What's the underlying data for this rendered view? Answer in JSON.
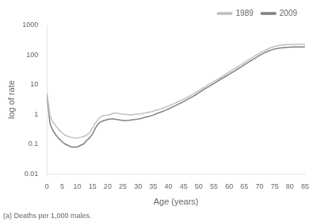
{
  "chart_data": {
    "type": "line",
    "xlabel": "Age (years)",
    "ylabel": "log of rate",
    "annotations": [
      "(a) Deaths per 1,000 males."
    ],
    "log": "y",
    "grid": false,
    "legend": "upper right",
    "xlim": [
      0,
      85
    ],
    "xticks": [
      0,
      5,
      10,
      15,
      20,
      25,
      30,
      35,
      40,
      45,
      50,
      55,
      60,
      65,
      70,
      75,
      80,
      85
    ],
    "ylim": [
      0.01,
      1000
    ],
    "yticks": [
      0.01,
      0.1,
      1,
      10,
      100,
      1000
    ],
    "x": [
      0,
      1,
      2,
      3,
      4,
      5,
      6,
      7,
      8,
      9,
      10,
      11,
      12,
      13,
      14,
      15,
      16,
      17,
      18,
      19,
      20,
      21,
      22,
      23,
      24,
      25,
      26,
      27,
      28,
      29,
      30,
      31,
      32,
      33,
      34,
      35,
      36,
      37,
      38,
      39,
      40,
      41,
      42,
      43,
      44,
      45,
      46,
      47,
      48,
      49,
      50,
      51,
      52,
      53,
      54,
      55,
      56,
      57,
      58,
      59,
      60,
      61,
      62,
      63,
      64,
      65,
      66,
      67,
      68,
      69,
      70,
      71,
      72,
      73,
      74,
      75,
      76,
      77,
      78,
      79,
      80,
      81,
      82,
      83,
      84,
      85
    ],
    "series": [
      {
        "name": "1989",
        "color": "#c0c0c0",
        "values": [
          5.5,
          0.9,
          0.55,
          0.4,
          0.3,
          0.24,
          0.2,
          0.18,
          0.17,
          0.16,
          0.16,
          0.17,
          0.18,
          0.2,
          0.24,
          0.35,
          0.52,
          0.72,
          0.88,
          0.93,
          0.95,
          1.0,
          1.1,
          1.1,
          1.05,
          1.02,
          1.0,
          0.98,
          0.98,
          1.0,
          1.02,
          1.05,
          1.1,
          1.15,
          1.2,
          1.28,
          1.38,
          1.48,
          1.6,
          1.75,
          1.9,
          2.1,
          2.35,
          2.6,
          2.9,
          3.25,
          3.7,
          4.2,
          4.8,
          5.5,
          6.3,
          7.3,
          8.5,
          9.8,
          11.2,
          13.0,
          15.0,
          17.5,
          20.0,
          23.0,
          27.0,
          31.0,
          36.0,
          42.0,
          48.0,
          56.0,
          65.0,
          75.0,
          87.0,
          100.0,
          115.0,
          130.0,
          148.0,
          165.0,
          182.0,
          195.0,
          205.0,
          215.0,
          220.0,
          225.0,
          228.0,
          230.0,
          231.0,
          232.0,
          232.0,
          233.0
        ]
      },
      {
        "name": "2009",
        "color": "#808080",
        "values": [
          4.5,
          0.5,
          0.28,
          0.2,
          0.15,
          0.12,
          0.1,
          0.09,
          0.08,
          0.08,
          0.08,
          0.09,
          0.1,
          0.13,
          0.16,
          0.22,
          0.35,
          0.5,
          0.58,
          0.63,
          0.67,
          0.7,
          0.7,
          0.67,
          0.65,
          0.62,
          0.62,
          0.63,
          0.65,
          0.67,
          0.7,
          0.73,
          0.78,
          0.83,
          0.88,
          0.95,
          1.05,
          1.15,
          1.25,
          1.38,
          1.52,
          1.7,
          1.9,
          2.15,
          2.4,
          2.7,
          3.1,
          3.5,
          4.0,
          4.6,
          5.4,
          6.2,
          7.2,
          8.3,
          9.6,
          11.0,
          12.8,
          14.8,
          17.0,
          19.5,
          22.5,
          26.0,
          30.0,
          35.0,
          40.0,
          47.0,
          54.0,
          63.0,
          73.0,
          84.0,
          97.0,
          110.0,
          124.0,
          138.0,
          150.0,
          160.0,
          168.0,
          174.0,
          178.0,
          182.0,
          184.0,
          186.0,
          187.0,
          188.0,
          188.0,
          189.0
        ]
      }
    ]
  }
}
